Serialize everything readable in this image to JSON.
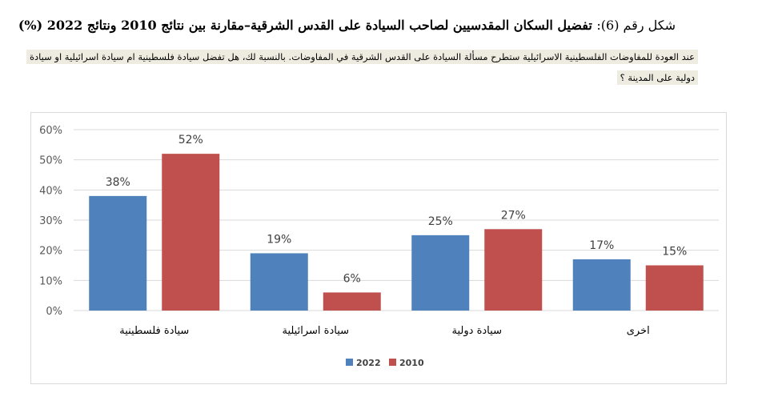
{
  "header": {
    "figure_label": "شكل رقم (6):",
    "title": "تفضيل السكان المقدسيين لصاحب السيادة على القدس الشرقية–مقارنة بين نتائج 2010 ونتائج 2022 (%)",
    "question": "عند العودة للمفاوضات الفلسطينية الاسرائيلية ستطرح مسألة السيادة على القدس الشرقية في المفاوضات. بالنسبة لك، هل تفضل سيادة فلسطينية ام سيادة اسرائيلية او سيادة دولية على المدينة ؟"
  },
  "chart_data": {
    "type": "bar",
    "categories": [
      "سيادة فلسطينية",
      "سيادة اسرائيلية",
      "سيادة دولية",
      "اخرى"
    ],
    "series": [
      {
        "name": "2022",
        "values": [
          38,
          19,
          25,
          17
        ],
        "labels": [
          "38%",
          "19%",
          "25%",
          "17%"
        ],
        "color": "#4f81bd"
      },
      {
        "name": "2010",
        "values": [
          52,
          6,
          27,
          15
        ],
        "labels": [
          "52%",
          "6%",
          "27%",
          "15%"
        ],
        "color": "#c0504d"
      }
    ],
    "yticks": [
      "0%",
      "10%",
      "20%",
      "30%",
      "40%",
      "50%",
      "60%"
    ],
    "ylim": [
      0,
      60
    ],
    "grid": true,
    "legend": "bottom",
    "title": "",
    "xlabel": "",
    "ylabel": ""
  }
}
